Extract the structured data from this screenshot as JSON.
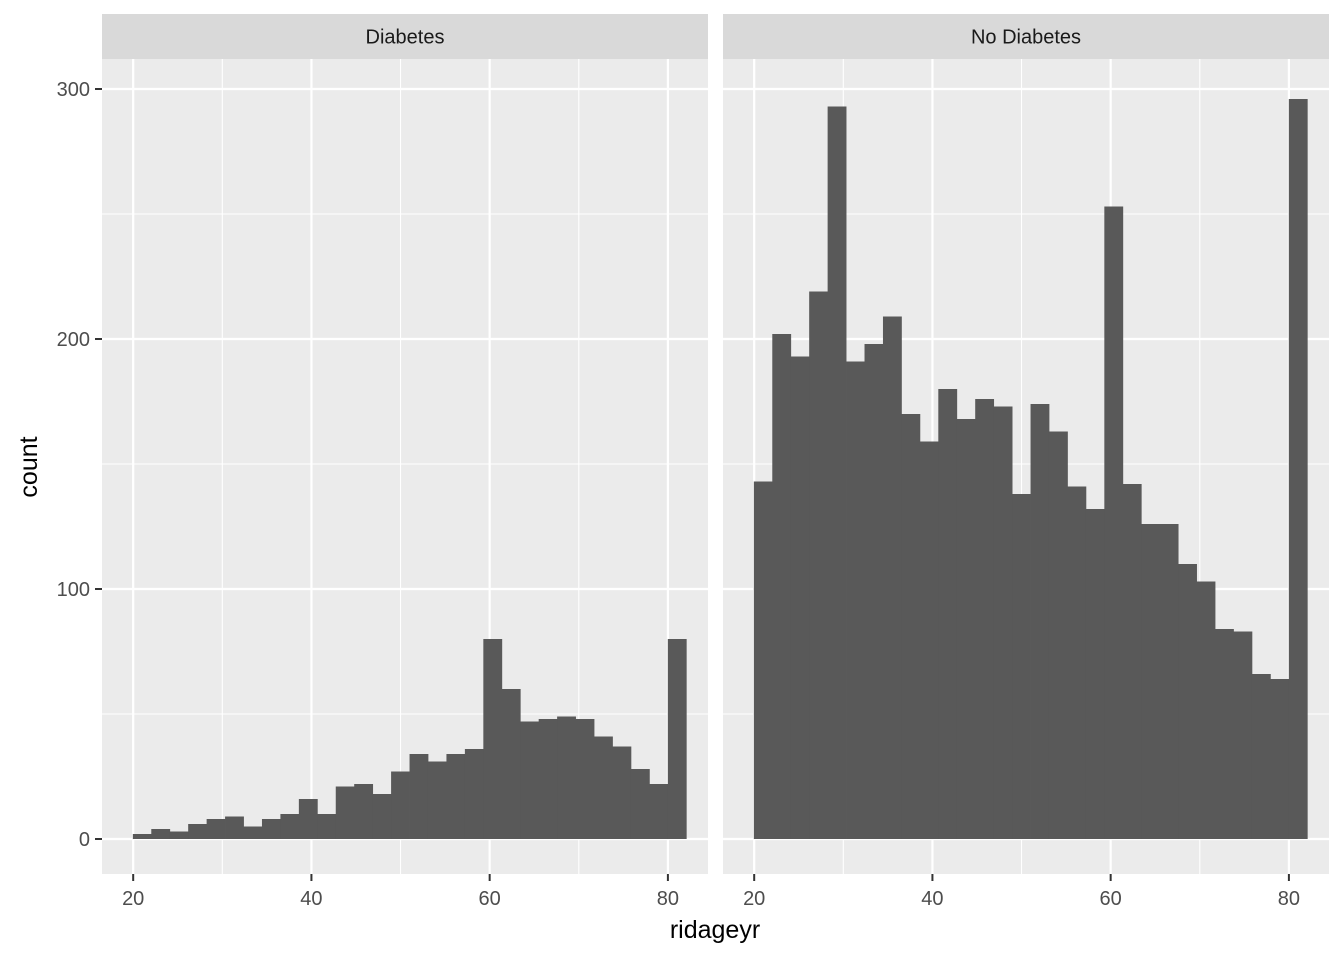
{
  "chart_data": {
    "type": "bar",
    "subtype": "faceted-histogram",
    "xlabel": "ridageyr",
    "ylabel": "count",
    "xlim": [
      16.5,
      84.5
    ],
    "ylim": [
      -14,
      312
    ],
    "x_ticks": [
      20,
      40,
      60,
      80
    ],
    "y_ticks": [
      0,
      100,
      200,
      300
    ],
    "bin_width": 2.07,
    "bin_start": 19.96,
    "grid": true,
    "colors": {
      "bar": "#595959",
      "panel": "#ebebeb",
      "grid": "#ffffff",
      "strip": "#d9d9d9"
    },
    "facets": [
      {
        "label": "Diabetes",
        "counts": [
          2,
          4,
          3,
          6,
          8,
          9,
          5,
          8,
          10,
          16,
          10,
          21,
          22,
          18,
          27,
          34,
          31,
          34,
          36,
          80,
          60,
          47,
          48,
          49,
          48,
          41,
          37,
          28,
          22,
          80
        ]
      },
      {
        "label": "No Diabetes",
        "counts": [
          143,
          202,
          193,
          219,
          293,
          191,
          198,
          209,
          170,
          159,
          180,
          168,
          176,
          173,
          138,
          174,
          163,
          141,
          132,
          253,
          142,
          126,
          126,
          110,
          103,
          84,
          83,
          66,
          64,
          296
        ]
      }
    ]
  }
}
